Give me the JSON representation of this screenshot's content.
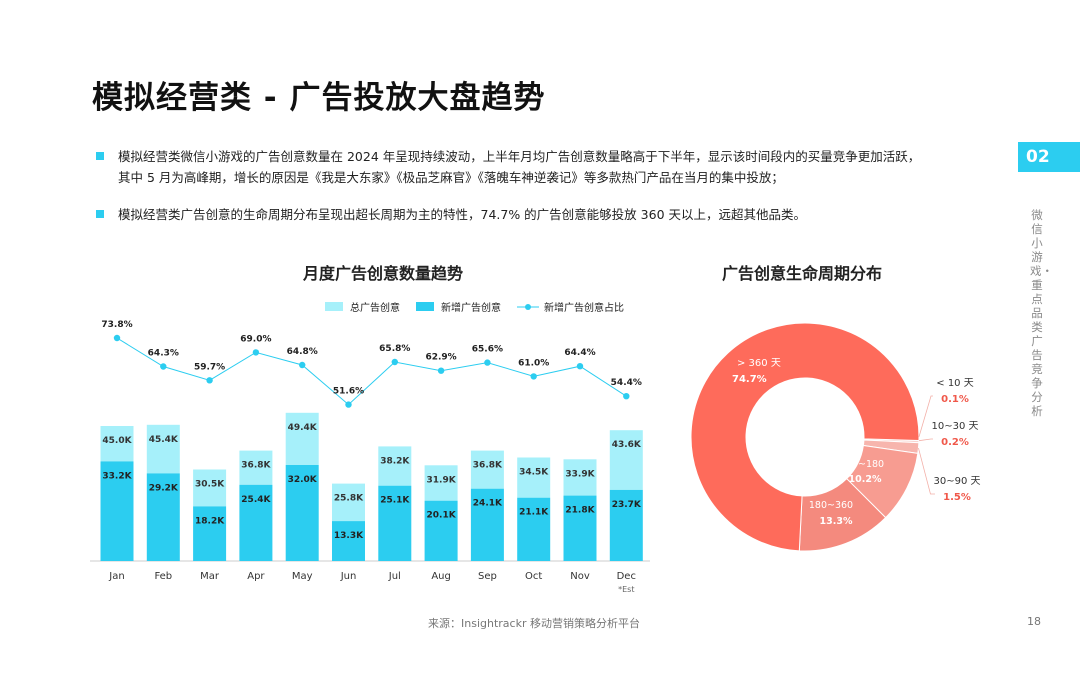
{
  "page": {
    "title": "模拟经营类 - 广告投放大盘趋势",
    "bullets": [
      "模拟经营类微信小游戏的广告创意数量在 2024 年呈现持续波动，上半年月均广告创意数量略高于下半年，显示该时间段内的买量竞争更加活跃，",
      "其中 5 月为高峰期，增长的原因是《我是大东家》《极品芝麻官》《落魄车神逆袭记》等多款热门产品在当月的集中投放；",
      "模拟经营类广告创意的生命周期分布呈现出超长周期为主的特性，74.7% 的广告创意能够投放 360 天以上，远超其他品类。"
    ],
    "section_tag": "02",
    "side_text": "微信小游戏・重点品类广告竞争分析",
    "source": "来源：Insightrackr 移动营销策略分析平台",
    "page_number": "18"
  },
  "colors": {
    "accent": "#2ccdf0",
    "total_bar": "#a6f0fa",
    "new_bar": "#2ccdf0",
    "line": "#2ccdf0",
    "pie": [
      "#ff6e5c",
      "#f7cac4",
      "#f4a89f",
      "#f9978b",
      "#f48576"
    ]
  },
  "chart_data": [
    {
      "type": "bar",
      "title": "月度广告创意数量趋势",
      "categories": [
        "Jan",
        "Feb",
        "Mar",
        "Apr",
        "May",
        "Jun",
        "Jul",
        "Aug",
        "Sep",
        "Oct",
        "Nov",
        "Dec"
      ],
      "series": [
        {
          "name": "总广告创意",
          "values": [
            45.0,
            45.4,
            30.5,
            36.8,
            49.4,
            25.8,
            38.2,
            31.9,
            36.8,
            34.5,
            33.9,
            43.6
          ],
          "labels": [
            "45.0K",
            "45.4K",
            "30.5K",
            "36.8K",
            "49.4K",
            "25.8K",
            "38.2K",
            "31.9K",
            "36.8K",
            "34.5K",
            "33.9K",
            "43.6K"
          ]
        },
        {
          "name": "新增广告创意",
          "values": [
            33.2,
            29.2,
            18.2,
            25.4,
            32.0,
            13.3,
            25.1,
            20.1,
            24.1,
            21.1,
            21.8,
            23.7
          ],
          "labels": [
            "33.2K",
            "29.2K",
            "18.2K",
            "25.4K",
            "32.0K",
            "13.3K",
            "25.1K",
            "20.1K",
            "24.1K",
            "21.1K",
            "21.8K",
            "23.7K"
          ]
        },
        {
          "name": "新增广告创意占比",
          "type": "line",
          "values": [
            73.8,
            64.3,
            59.7,
            69.0,
            64.8,
            51.6,
            65.8,
            62.9,
            65.6,
            61.0,
            64.4,
            54.4
          ],
          "labels": [
            "73.8%",
            "64.3%",
            "59.7%",
            "69.0%",
            "64.8%",
            "51.6%",
            "65.8%",
            "62.9%",
            "65.6%",
            "61.0%",
            "64.4%",
            "54.4%"
          ]
        }
      ],
      "unit": "K",
      "annotation": "*Est"
    },
    {
      "type": "pie",
      "title": "广告创意生命周期分布",
      "slices": [
        {
          "name": "> 360 天",
          "value": 74.7,
          "label": "74.7%"
        },
        {
          "name": "< 10 天",
          "value": 0.1,
          "label": "0.1%"
        },
        {
          "name": "10~30 天",
          "value": 0.2,
          "label": "0.2%"
        },
        {
          "name": "30~90 天",
          "value": 1.5,
          "label": "1.5%"
        },
        {
          "name": "90~180",
          "value": 10.2,
          "label": "10.2%"
        },
        {
          "name": "180~360",
          "value": 13.3,
          "label": "13.3%"
        }
      ]
    }
  ]
}
